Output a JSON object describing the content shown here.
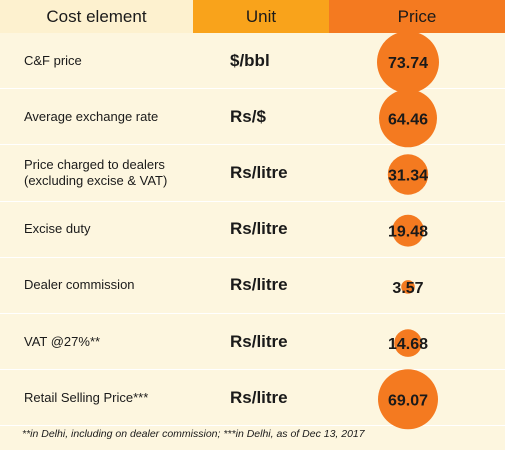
{
  "headers": {
    "cost": "Cost element",
    "unit": "Unit",
    "price": "Price"
  },
  "chart_data": {
    "type": "table",
    "rows": [
      {
        "element": "C&F price",
        "element_line2": "",
        "unit": "$/bbl",
        "value": 73.74,
        "value_label": "73.74"
      },
      {
        "element": "Average exchange rate",
        "element_line2": "",
        "unit": "Rs/$",
        "value": 64.46,
        "value_label": "64.46"
      },
      {
        "element": "Price charged to dealers",
        "element_line2": "(excluding excise & VAT)",
        "unit": "Rs/litre",
        "value": 31.34,
        "value_label": "31.34"
      },
      {
        "element": "Excise duty",
        "element_line2": "",
        "unit": "Rs/litre",
        "value": 19.48,
        "value_label": "19.48"
      },
      {
        "element": "Dealer commission",
        "element_line2": "",
        "unit": "Rs/litre",
        "value": 3.57,
        "value_label": "3.57"
      },
      {
        "element": "VAT @27%**",
        "element_line2": "",
        "unit": "Rs/litre",
        "value": 14.68,
        "value_label": "14.68"
      },
      {
        "element": "Retail Selling Price***",
        "element_line2": "",
        "unit": "Rs/litre",
        "value": 69.07,
        "value_label": "69.07"
      }
    ]
  },
  "footnote": "**in Delhi, including on dealer commission;  ***in Delhi, as of Dec 13, 2017",
  "colors": {
    "bubble": "#f47a20",
    "header_unit": "#f9a31b",
    "header_price": "#f47a20",
    "background": "#fdf6df"
  }
}
